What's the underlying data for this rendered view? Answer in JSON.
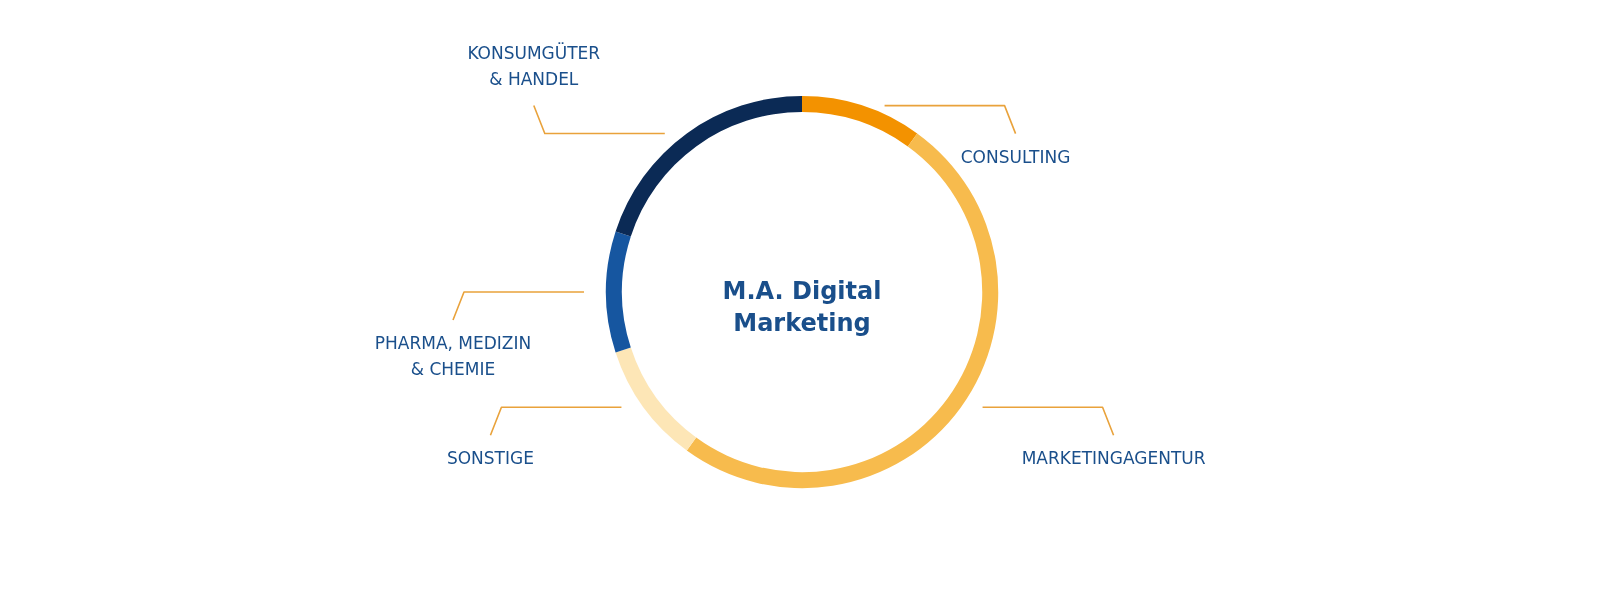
{
  "chart_data": {
    "type": "donut",
    "title": "M.A. Digital Marketing",
    "categories": [
      "CONSULTING",
      "MARKETINGAGENTUR",
      "SONSTIGE",
      "PHARMA, MEDIZIN & CHEMIE",
      "KONSUMGÜTER & HANDEL"
    ],
    "values": [
      10,
      50,
      10,
      10,
      20
    ],
    "colors": [
      "#f39200",
      "#f7bb4d",
      "#fde6b6",
      "#1656a0",
      "#0b2a55"
    ]
  }
}
